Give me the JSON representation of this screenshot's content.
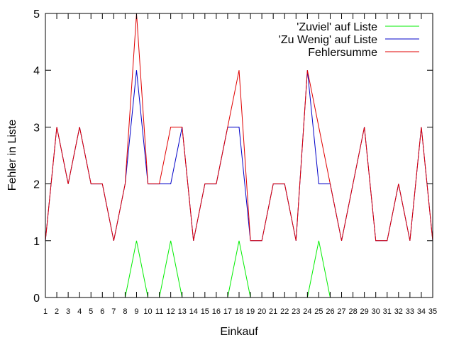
{
  "chart_data": {
    "type": "line",
    "xlabel": "Einkauf",
    "ylabel": "Fehler in Liste",
    "xlim": [
      1,
      35
    ],
    "ylim": [
      0,
      5
    ],
    "x_ticks": [
      1,
      2,
      3,
      4,
      5,
      6,
      7,
      8,
      9,
      10,
      11,
      12,
      13,
      14,
      15,
      16,
      17,
      18,
      19,
      20,
      21,
      22,
      23,
      24,
      25,
      26,
      27,
      28,
      29,
      30,
      31,
      32,
      33,
      34,
      35
    ],
    "y_ticks": [
      0,
      1,
      2,
      3,
      4,
      5
    ],
    "grid": false,
    "legend_position": "top-right",
    "series": [
      {
        "name": "'Zuviel' auf Liste",
        "color": "#00ee00",
        "points": [
          [
            1,
            0
          ],
          [
            2,
            0
          ],
          [
            3,
            0
          ],
          [
            4,
            0
          ],
          [
            5,
            0
          ],
          [
            6,
            0
          ],
          [
            7,
            0
          ],
          [
            8,
            0
          ],
          [
            9,
            1
          ],
          [
            10,
            0
          ],
          [
            11,
            0
          ],
          [
            12,
            1
          ],
          [
            13,
            0
          ],
          [
            14,
            0
          ],
          [
            15,
            0
          ],
          [
            16,
            0
          ],
          [
            17,
            0
          ],
          [
            18,
            1
          ],
          [
            19,
            0
          ],
          [
            20,
            0
          ],
          [
            21,
            0
          ],
          [
            22,
            0
          ],
          [
            23,
            0
          ],
          [
            24,
            0
          ],
          [
            25,
            1
          ],
          [
            26,
            0
          ],
          [
            27,
            0
          ],
          [
            28,
            0
          ],
          [
            29,
            0
          ],
          [
            30,
            0
          ],
          [
            31,
            0
          ],
          [
            32,
            0
          ],
          [
            33,
            0
          ],
          [
            34,
            0
          ],
          [
            35,
            0
          ]
        ]
      },
      {
        "name": "'Zu Wenig' auf Liste",
        "color": "#0000c8",
        "points": [
          [
            1,
            1
          ],
          [
            2,
            3
          ],
          [
            3,
            2
          ],
          [
            4,
            3
          ],
          [
            5,
            2
          ],
          [
            6,
            2
          ],
          [
            7,
            1
          ],
          [
            8,
            2
          ],
          [
            9,
            4
          ],
          [
            10,
            2
          ],
          [
            11,
            2
          ],
          [
            12,
            2
          ],
          [
            13,
            3
          ],
          [
            14,
            1
          ],
          [
            15,
            2
          ],
          [
            16,
            2
          ],
          [
            17,
            3
          ],
          [
            18,
            3
          ],
          [
            19,
            1
          ],
          [
            20,
            1
          ],
          [
            21,
            2
          ],
          [
            22,
            2
          ],
          [
            23,
            1
          ],
          [
            24,
            4
          ],
          [
            25,
            2
          ],
          [
            26,
            2
          ],
          [
            27,
            1
          ],
          [
            28,
            2
          ],
          [
            29,
            3
          ],
          [
            30,
            1
          ],
          [
            31,
            1
          ],
          [
            32,
            2
          ],
          [
            33,
            1
          ],
          [
            34,
            3
          ],
          [
            35,
            1
          ]
        ]
      },
      {
        "name": "Fehlersumme",
        "color": "#e00000",
        "points": [
          [
            1,
            1
          ],
          [
            2,
            3
          ],
          [
            3,
            2
          ],
          [
            4,
            3
          ],
          [
            5,
            2
          ],
          [
            6,
            2
          ],
          [
            7,
            1
          ],
          [
            8,
            2
          ],
          [
            9,
            5
          ],
          [
            10,
            2
          ],
          [
            11,
            2
          ],
          [
            12,
            3
          ],
          [
            13,
            3
          ],
          [
            14,
            1
          ],
          [
            15,
            2
          ],
          [
            16,
            2
          ],
          [
            17,
            3
          ],
          [
            18,
            4
          ],
          [
            19,
            1
          ],
          [
            20,
            1
          ],
          [
            21,
            2
          ],
          [
            22,
            2
          ],
          [
            23,
            1
          ],
          [
            24,
            4
          ],
          [
            25,
            3
          ],
          [
            26,
            2
          ],
          [
            27,
            1
          ],
          [
            28,
            2
          ],
          [
            29,
            3
          ],
          [
            30,
            1
          ],
          [
            31,
            1
          ],
          [
            32,
            2
          ],
          [
            33,
            1
          ],
          [
            34,
            3
          ],
          [
            35,
            1
          ]
        ]
      }
    ]
  }
}
